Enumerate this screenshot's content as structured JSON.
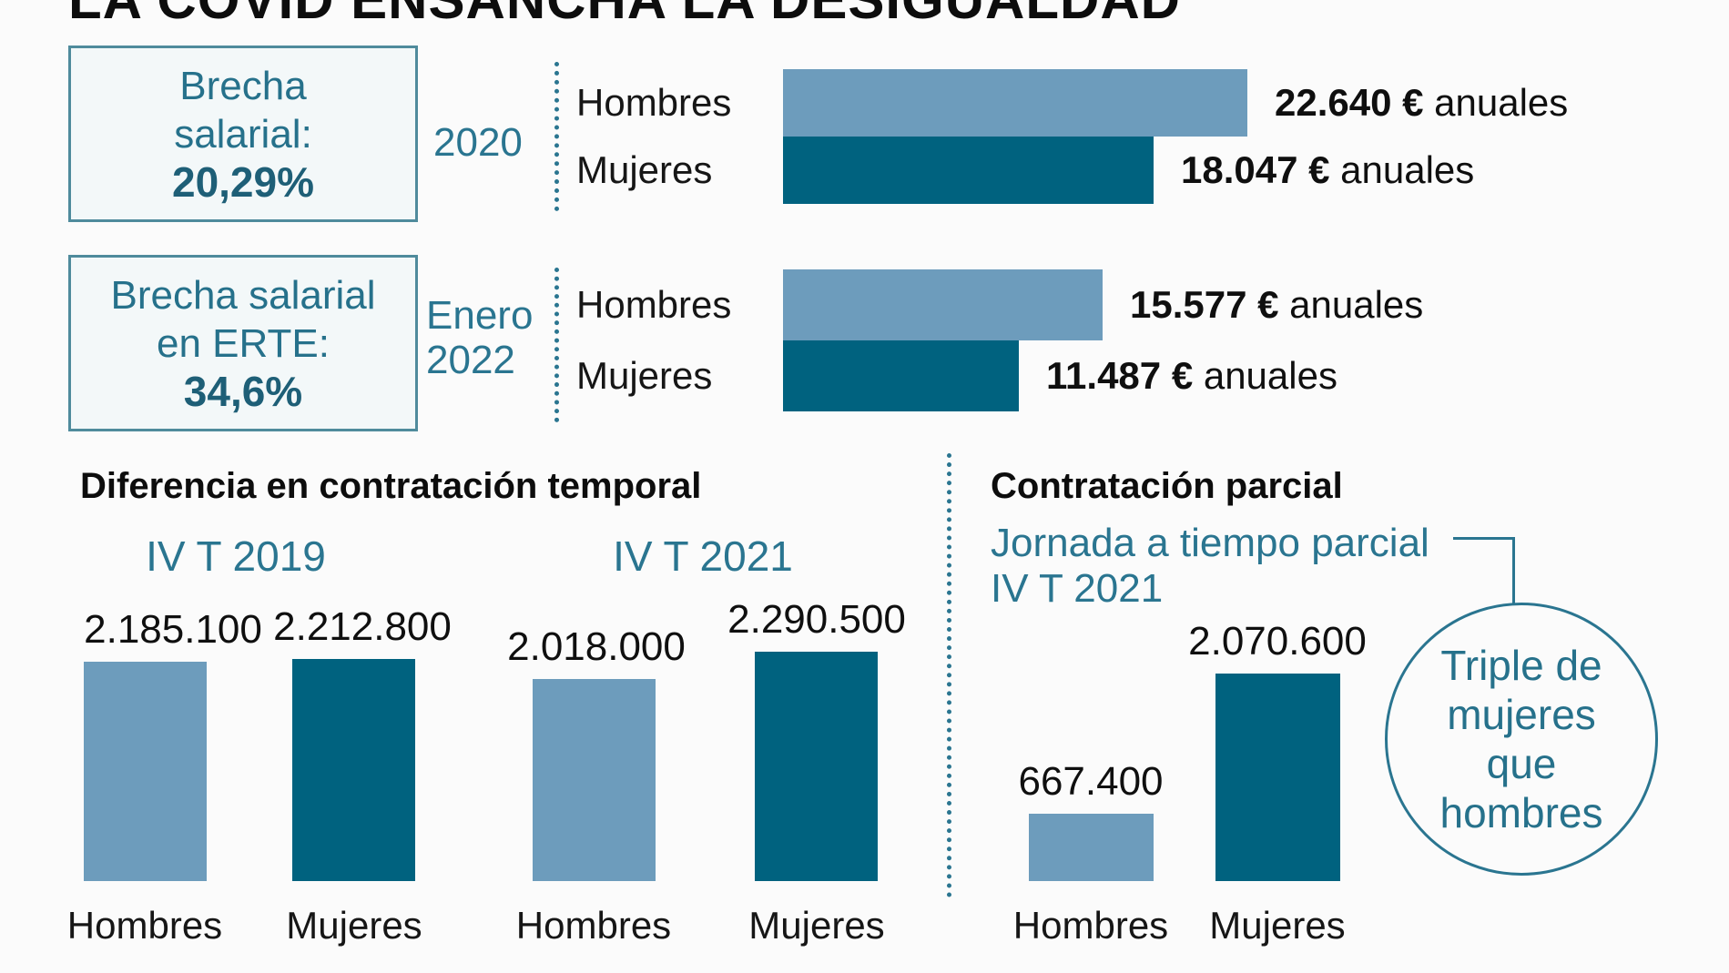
{
  "title": "LA COVID ENSANCHA LA DESIGUALDAD",
  "colors": {
    "light_blue_bar": "#6d9cbc",
    "dark_teal_bar": "#00627f",
    "teal_text": "#2a7590",
    "teal_dark_text": "#1e5f77",
    "box_border": "#4f8b9c",
    "black_text": "#0d0d0d",
    "background": "#fbfbfb"
  },
  "callouts": {
    "gap_box": {
      "line1": "Brecha",
      "line2": "salarial:",
      "value": "20,29%"
    },
    "erte_box": {
      "line1": "Brecha salarial",
      "line2": "en ERTE:",
      "value": "34,6%"
    },
    "triple_circle": {
      "line1": "Triple de",
      "line2": "mujeres",
      "line3": "que",
      "line4": "hombres"
    }
  },
  "chart_data": [
    {
      "id": "brecha_salarial",
      "type": "bar",
      "orientation": "horizontal",
      "unit": "€ anuales",
      "annotation_boxes": [
        "Brecha salarial: 20,29%",
        "Brecha salarial en ERTE: 34,6%"
      ],
      "groups": [
        {
          "period": "2020",
          "rows": [
            {
              "category": "Hombres",
              "value": 22640,
              "label_bold": "22.640 €",
              "label_suffix": " anuales"
            },
            {
              "category": "Mujeres",
              "value": 18047,
              "label_bold": "18.047 €",
              "label_suffix": " anuales"
            }
          ]
        },
        {
          "period_line1": "Enero",
          "period_line2": "2022",
          "rows": [
            {
              "category": "Hombres",
              "value": 15577,
              "label_bold": "15.577 €",
              "label_suffix": " anuales"
            },
            {
              "category": "Mujeres",
              "value": 11487,
              "label_bold": "11.487 €",
              "label_suffix": " anuales"
            }
          ]
        }
      ]
    },
    {
      "id": "contratacion_temporal",
      "type": "bar",
      "orientation": "vertical",
      "title": "Diferencia en contratación temporal",
      "groups": [
        {
          "period": "IV T 2019",
          "bars": [
            {
              "category": "Hombres",
              "value": 2185100,
              "label": "2.185.100"
            },
            {
              "category": "Mujeres",
              "value": 2212800,
              "label": "2.212.800"
            }
          ]
        },
        {
          "period": "IV T 2021",
          "bars": [
            {
              "category": "Hombres",
              "value": 2018000,
              "label": "2.018.000"
            },
            {
              "category": "Mujeres",
              "value": 2290500,
              "label": "2.290.500"
            }
          ]
        }
      ]
    },
    {
      "id": "contratacion_parcial",
      "type": "bar",
      "orientation": "vertical",
      "title": "Contratación parcial",
      "subtitle_line1": "Jornada a tiempo parcial",
      "subtitle_line2": "IV T 2021",
      "bars": [
        {
          "category": "Hombres",
          "value": 667400,
          "label": "667.400"
        },
        {
          "category": "Mujeres",
          "value": 2070600,
          "label": "2.070.600"
        }
      ],
      "annotation": "Triple de mujeres que hombres"
    }
  ]
}
